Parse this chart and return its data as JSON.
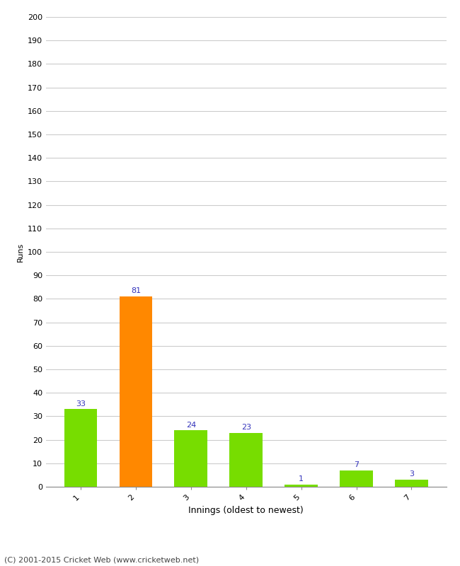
{
  "categories": [
    "1",
    "2",
    "3",
    "4",
    "5",
    "6",
    "7"
  ],
  "values": [
    33,
    81,
    24,
    23,
    1,
    7,
    3
  ],
  "bar_colors": [
    "#77dd00",
    "#ff8800",
    "#77dd00",
    "#77dd00",
    "#77dd00",
    "#77dd00",
    "#77dd00"
  ],
  "xlabel": "Innings (oldest to newest)",
  "ylabel": "Runs",
  "ylim": [
    0,
    200
  ],
  "ytick_step": 10,
  "label_color": "#3333bb",
  "footer": "(C) 2001-2015 Cricket Web (www.cricketweb.net)",
  "background_color": "#ffffff",
  "grid_color": "#cccccc"
}
